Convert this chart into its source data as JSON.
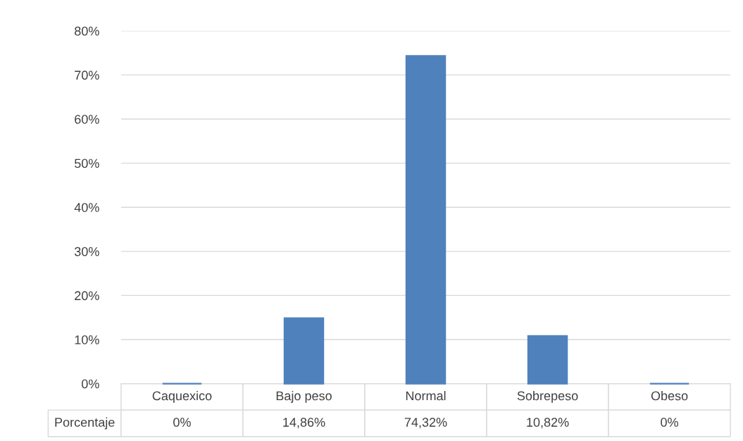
{
  "chart_data": {
    "type": "bar",
    "categories": [
      "Caquexico",
      "Bajo peso",
      "Normal",
      "Sobrepeso",
      "Obeso"
    ],
    "series": [
      {
        "name": "Porcentaje",
        "color": "#4f81bd",
        "values": [
          0,
          14.86,
          74.32,
          10.82,
          0
        ],
        "value_labels": [
          "0%",
          "14,86%",
          "74,32%",
          "10,82%",
          "0%"
        ]
      }
    ],
    "ylim": [
      0,
      80
    ],
    "yticks": [
      {
        "value": 0,
        "label": "0%"
      },
      {
        "value": 10,
        "label": "10%"
      },
      {
        "value": 20,
        "label": "20%"
      },
      {
        "value": 30,
        "label": "30%"
      },
      {
        "value": 40,
        "label": "40%"
      },
      {
        "value": 50,
        "label": "50%"
      },
      {
        "value": 60,
        "label": "60%"
      },
      {
        "value": 70,
        "label": "70%"
      },
      {
        "value": 80,
        "label": "80%"
      }
    ],
    "grid": "y"
  }
}
